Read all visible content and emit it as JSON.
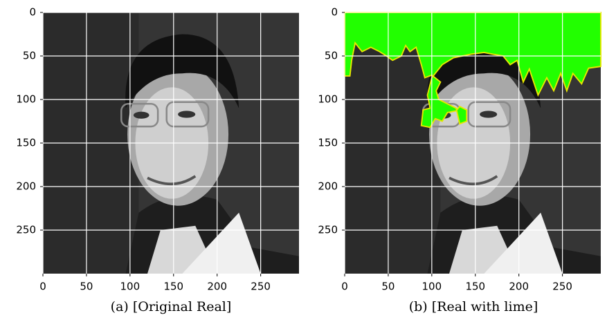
{
  "chart_data": [
    {
      "type": "image",
      "caption": "(a) [Original Real]",
      "xlim": [
        0,
        294
      ],
      "ylim": [
        300,
        0
      ],
      "xticks": [
        0,
        50,
        100,
        150,
        200,
        250
      ],
      "yticks": [
        0,
        50,
        100,
        150,
        200,
        250
      ],
      "grid": true,
      "grid_color": "#ffffff",
      "overlay": false
    },
    {
      "type": "image",
      "caption": "(b) [Real with lime]",
      "xlim": [
        0,
        294
      ],
      "ylim": [
        300,
        0
      ],
      "xticks": [
        0,
        50,
        100,
        150,
        200,
        250
      ],
      "yticks": [
        0,
        50,
        100,
        150,
        200,
        250
      ],
      "grid": true,
      "grid_color": "#ffffff",
      "overlay": true,
      "overlay_color": "#22ff00"
    }
  ]
}
